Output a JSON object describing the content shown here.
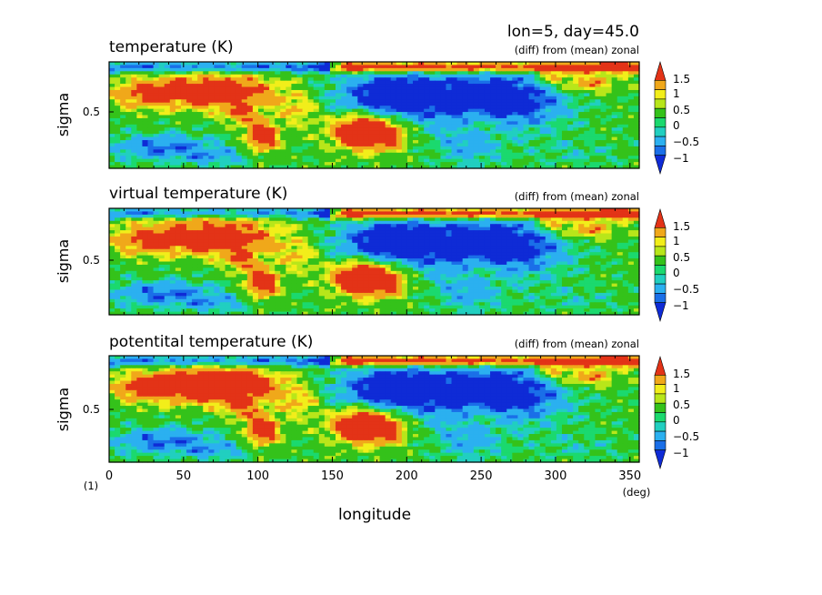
{
  "header": {
    "title": "lon=5, day=45.0"
  },
  "colorbar": {
    "labels": [
      "1.5",
      "1",
      "0.5",
      "0",
      "−0.5",
      "−1"
    ],
    "colors": [
      "#0f2bd6",
      "#1a6fe8",
      "#2bb0f0",
      "#21cfc0",
      "#1bd96e",
      "#34c21a",
      "#b8e61a",
      "#f2ee1a",
      "#f0a81a",
      "#e33317"
    ]
  },
  "chart_data": [
    {
      "type": "heatmap",
      "title": "temperature (K)",
      "subtitle": "(diff) from (mean) zonal",
      "ylabel": "sigma",
      "yticks": [
        "0.5"
      ],
      "xlim": [
        0,
        360
      ],
      "ylim": [
        0,
        1
      ],
      "field": "temperature",
      "levels": [
        -1,
        -0.5,
        0,
        0.5,
        1,
        1.5
      ]
    },
    {
      "type": "heatmap",
      "title": "virtual temperature (K)",
      "subtitle": "(diff) from (mean) zonal",
      "ylabel": "sigma",
      "yticks": [
        "0.5"
      ],
      "xlim": [
        0,
        360
      ],
      "ylim": [
        0,
        1
      ],
      "field": "virtual_temperature",
      "levels": [
        -1,
        -0.5,
        0,
        0.5,
        1,
        1.5
      ]
    },
    {
      "type": "heatmap",
      "title": "potentital temperature (K)",
      "subtitle": "(diff) from (mean) zonal",
      "ylabel": "sigma",
      "yticks": [
        "0.5"
      ],
      "xlim": [
        0,
        360
      ],
      "ylim": [
        0,
        1
      ],
      "field": "potential_temperature",
      "levels": [
        -1,
        -0.5,
        0,
        0.5,
        1,
        1.5
      ]
    }
  ],
  "xaxis": {
    "label": "longitude",
    "unit": "(deg)",
    "ticks": [
      "0",
      "50",
      "100",
      "150",
      "200",
      "250",
      "300",
      "350"
    ],
    "tick_values": [
      0,
      50,
      100,
      150,
      200,
      250,
      300,
      350
    ],
    "corner_label": "(1)"
  }
}
